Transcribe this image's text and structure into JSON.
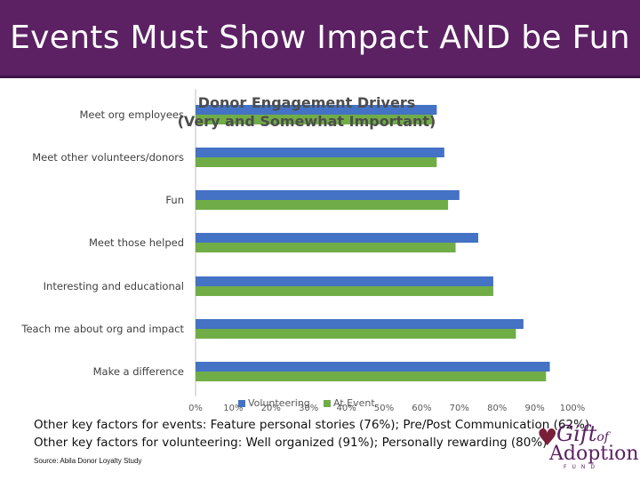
{
  "slide": {
    "title": "Events Must Show Impact AND be Fun",
    "footer_line1": "Other key factors for events: Feature personal stories (76%); Pre/Post Communication (62%)",
    "footer_line2": "Other key factors for volunteering: Well organized (91%); Personally rewarding (80%)",
    "source": "Source: Abila Donor Loyalty Study",
    "logo": {
      "gift": "Gift",
      "of": "of",
      "adoption": "Adoption",
      "fund": "FUND"
    }
  },
  "colors": {
    "banner": "#5b2163",
    "volunteering": "#4472c4",
    "at_event": "#70ad47"
  },
  "chart_data": {
    "type": "bar",
    "orientation": "horizontal",
    "title": "Donor Engagement Drivers",
    "subtitle": "(Very and Somewhat Important)",
    "categories": [
      "Meet org employees",
      "Meet other volunteers/donors",
      "Fun",
      "Meet those helped",
      "Interesting and educational",
      "Teach me about org and impact",
      "Make a difference"
    ],
    "series": [
      {
        "name": "Volunteering",
        "color": "#4472c4",
        "values": [
          64,
          66,
          70,
          75,
          79,
          87,
          94
        ]
      },
      {
        "name": "At Event",
        "color": "#70ad47",
        "values": [
          63,
          64,
          67,
          69,
          79,
          85,
          93
        ]
      }
    ],
    "xlim": [
      0,
      100
    ],
    "x_ticks": [
      "0%",
      "10%",
      "20%",
      "30%",
      "40%",
      "50%",
      "60%",
      "70%",
      "80%",
      "90%",
      "100%"
    ],
    "legend": "bottom",
    "grid": false
  }
}
